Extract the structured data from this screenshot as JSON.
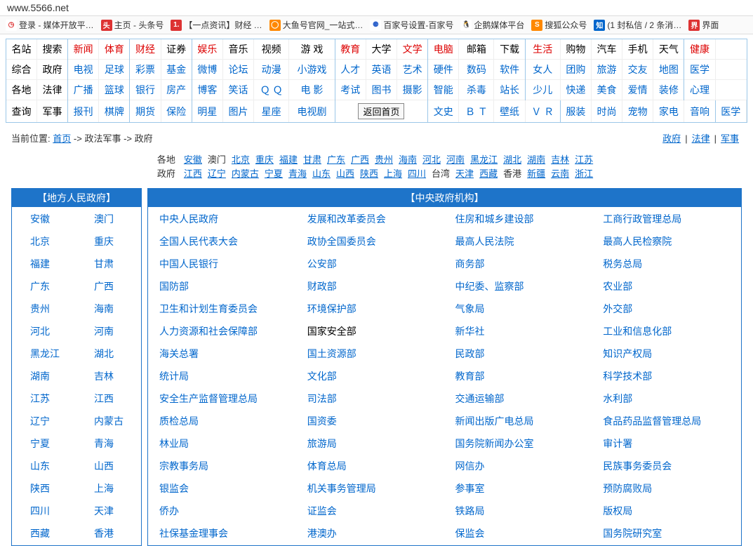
{
  "addressbar": {
    "url": "www.5566.net"
  },
  "bookmarks": [
    {
      "icon_bg": "#fff",
      "icon_fg": "#d33",
      "glyph": "◷",
      "label": "登录 - 媒体开放平…"
    },
    {
      "icon_bg": "#d33",
      "icon_fg": "#fff",
      "glyph": "头",
      "label": "主页 - 头条号"
    },
    {
      "icon_bg": "#d33",
      "icon_fg": "#fff",
      "glyph": "1.",
      "label": "【一点资讯】财经 …"
    },
    {
      "icon_bg": "#f80",
      "icon_fg": "#fff",
      "glyph": "◯",
      "label": "大鱼号官网_一站式…"
    },
    {
      "icon_bg": "#fff",
      "icon_fg": "#36c",
      "glyph": "⚈",
      "label": "百家号设置-百家号"
    },
    {
      "icon_bg": "#fff",
      "icon_fg": "#f90",
      "glyph": "🐧",
      "label": "企鹅媒体平台"
    },
    {
      "icon_bg": "#f80",
      "icon_fg": "#fff",
      "glyph": "S",
      "label": "搜狐公众号"
    },
    {
      "icon_bg": "#06c",
      "icon_fg": "#fff",
      "glyph": "知",
      "label": "(1 封私信 / 2 条消…"
    },
    {
      "icon_bg": "#d33",
      "icon_fg": "#fff",
      "glyph": "界",
      "label": "界面"
    }
  ],
  "nav": [
    [
      {
        "t": "名站",
        "c": "blk"
      },
      {
        "t": "搜索",
        "c": "blk",
        "sep": 1
      },
      {
        "t": "新闻",
        "c": "red"
      },
      {
        "t": "体育",
        "c": "red",
        "sep": 1
      },
      {
        "t": "财经",
        "c": "red"
      },
      {
        "t": "证券",
        "c": "blk",
        "sep": 1
      },
      {
        "t": "娱乐",
        "c": "red"
      },
      {
        "t": "音乐",
        "c": "blk"
      },
      {
        "t": "视频",
        "c": "blk"
      },
      {
        "t": "游 戏",
        "c": "blk",
        "sep": 1
      },
      {
        "t": "教育",
        "c": "red"
      },
      {
        "t": "大学",
        "c": "blk"
      },
      {
        "t": "文学",
        "c": "red",
        "sep": 1
      },
      {
        "t": "电脑",
        "c": "red"
      },
      {
        "t": "邮箱",
        "c": "blk"
      },
      {
        "t": "下载",
        "c": "blk",
        "sep": 1
      },
      {
        "t": "生活",
        "c": "red"
      },
      {
        "t": "购物",
        "c": "blk"
      },
      {
        "t": "汽车",
        "c": "blk"
      },
      {
        "t": "手机",
        "c": "blk"
      },
      {
        "t": "天气",
        "c": "blk",
        "sep": 1
      },
      {
        "t": "健康",
        "c": "red"
      }
    ],
    [
      {
        "t": "综合",
        "c": "blk"
      },
      {
        "t": "政府",
        "c": "blk",
        "sep": 1
      },
      {
        "t": "电视",
        "c": "blu"
      },
      {
        "t": "足球",
        "c": "blu",
        "sep": 1
      },
      {
        "t": "彩票",
        "c": "blu"
      },
      {
        "t": "基金",
        "c": "blu",
        "sep": 1
      },
      {
        "t": "微博",
        "c": "blu"
      },
      {
        "t": "论坛",
        "c": "blu"
      },
      {
        "t": "动漫",
        "c": "blu"
      },
      {
        "t": "小游戏",
        "c": "blu",
        "sep": 1
      },
      {
        "t": "人才",
        "c": "blu"
      },
      {
        "t": "英语",
        "c": "blu"
      },
      {
        "t": "艺术",
        "c": "blu",
        "sep": 1
      },
      {
        "t": "硬件",
        "c": "blu"
      },
      {
        "t": "数码",
        "c": "blu"
      },
      {
        "t": "软件",
        "c": "blu",
        "sep": 1
      },
      {
        "t": "女人",
        "c": "blu"
      },
      {
        "t": "团购",
        "c": "blu"
      },
      {
        "t": "旅游",
        "c": "blu"
      },
      {
        "t": "交友",
        "c": "blu"
      },
      {
        "t": "地图",
        "c": "blu",
        "sep": 1
      },
      {
        "t": "医学",
        "c": "blu"
      }
    ],
    [
      {
        "t": "各地",
        "c": "blk"
      },
      {
        "t": "法律",
        "c": "blk",
        "sep": 1
      },
      {
        "t": "广播",
        "c": "blu"
      },
      {
        "t": "篮球",
        "c": "blu",
        "sep": 1
      },
      {
        "t": "银行",
        "c": "blu"
      },
      {
        "t": "房产",
        "c": "blu",
        "sep": 1
      },
      {
        "t": "博客",
        "c": "blu"
      },
      {
        "t": "笑话",
        "c": "blu"
      },
      {
        "t": "Ｑ Ｑ",
        "c": "blu"
      },
      {
        "t": "电 影",
        "c": "blu",
        "sep": 1
      },
      {
        "t": "考试",
        "c": "blu"
      },
      {
        "t": "图书",
        "c": "blu"
      },
      {
        "t": "摄影",
        "c": "blu",
        "sep": 1
      },
      {
        "t": "智能",
        "c": "blu"
      },
      {
        "t": "杀毒",
        "c": "blu"
      },
      {
        "t": "站长",
        "c": "blu",
        "sep": 1
      },
      {
        "t": "少儿",
        "c": "blu"
      },
      {
        "t": "快递",
        "c": "blu"
      },
      {
        "t": "美食",
        "c": "blu"
      },
      {
        "t": "爱情",
        "c": "blu"
      },
      {
        "t": "装修",
        "c": "blu",
        "sep": 1
      },
      {
        "t": "心理",
        "c": "blu"
      }
    ],
    [
      {
        "t": "查询",
        "c": "blk"
      },
      {
        "t": "军事",
        "c": "blk",
        "sep": 1
      },
      {
        "t": "报刊",
        "c": "blu"
      },
      {
        "t": "棋牌",
        "c": "blu",
        "sep": 1
      },
      {
        "t": "期货",
        "c": "blu"
      },
      {
        "t": "保险",
        "c": "blu",
        "sep": 1
      },
      {
        "t": "明星",
        "c": "blu"
      },
      {
        "t": "图片",
        "c": "blu"
      },
      {
        "t": "星座",
        "c": "blu"
      },
      {
        "t": "电视剧",
        "c": "blu",
        "sep": 1
      },
      {
        "t": "返回首页",
        "c": "btn",
        "span": 3,
        "sep": 1
      },
      {
        "t": "文史",
        "c": "blu"
      },
      {
        "t": "Ｂ Ｔ",
        "c": "blu"
      },
      {
        "t": "壁纸",
        "c": "blu"
      },
      {
        "t": "Ｖ Ｒ",
        "c": "blu",
        "sep": 1
      },
      {
        "t": "服装",
        "c": "blu"
      },
      {
        "t": "时尚",
        "c": "blu"
      },
      {
        "t": "宠物",
        "c": "blu"
      },
      {
        "t": "家电",
        "c": "blu"
      },
      {
        "t": "音响",
        "c": "blu",
        "sep": 1
      },
      {
        "t": "医学",
        "c": "blu"
      }
    ]
  ],
  "breadcrumb": {
    "prefix": "当前位置:",
    "home": "首页",
    "arrow": "->",
    "mid": "政法军事",
    "end": "政府",
    "right": [
      "政府",
      "法律",
      "军事"
    ]
  },
  "provLabel": {
    "l1": "各地",
    "l2": "政府"
  },
  "provRow1": [
    {
      "t": "安徽"
    },
    {
      "t": "澳门",
      "plain": 1
    },
    {
      "t": "北京"
    },
    {
      "t": "重庆"
    },
    {
      "t": "福建"
    },
    {
      "t": "甘肃"
    },
    {
      "t": "广东"
    },
    {
      "t": "广西"
    },
    {
      "t": "贵州"
    },
    {
      "t": "海南"
    },
    {
      "t": "河北"
    },
    {
      "t": "河南"
    },
    {
      "t": "黑龙江"
    },
    {
      "t": "湖北"
    },
    {
      "t": "湖南"
    },
    {
      "t": "吉林"
    },
    {
      "t": "江苏"
    }
  ],
  "provRow2": [
    {
      "t": "江西"
    },
    {
      "t": "辽宁"
    },
    {
      "t": "内蒙古"
    },
    {
      "t": "宁夏"
    },
    {
      "t": "青海"
    },
    {
      "t": "山东"
    },
    {
      "t": "山西"
    },
    {
      "t": "陕西"
    },
    {
      "t": "上海"
    },
    {
      "t": "四川"
    },
    {
      "t": "台湾",
      "plain": 1
    },
    {
      "t": "天津"
    },
    {
      "t": "西藏"
    },
    {
      "t": "香港",
      "plain": 1
    },
    {
      "t": "新疆"
    },
    {
      "t": "云南"
    },
    {
      "t": "浙江"
    }
  ],
  "leftHeader": "【地方人民政府】",
  "leftRows": [
    [
      "安徽",
      "澳门"
    ],
    [
      "北京",
      "重庆"
    ],
    [
      "福建",
      "甘肃"
    ],
    [
      "广东",
      "广西"
    ],
    [
      "贵州",
      "海南"
    ],
    [
      "河北",
      "河南"
    ],
    [
      "黑龙江",
      "湖北"
    ],
    [
      "湖南",
      "吉林"
    ],
    [
      "江苏",
      "江西"
    ],
    [
      "辽宁",
      "内蒙古"
    ],
    [
      "宁夏",
      "青海"
    ],
    [
      "山东",
      "山西"
    ],
    [
      "陕西",
      "上海"
    ],
    [
      "四川",
      "天津"
    ],
    [
      "西藏",
      "香港"
    ]
  ],
  "rightHeader": "【中央政府机构】",
  "rightRows": [
    [
      {
        "t": "中央人民政府"
      },
      {
        "t": "发展和改革委员会"
      },
      {
        "t": "住房和城乡建设部"
      },
      {
        "t": "工商行政管理总局"
      }
    ],
    [
      {
        "t": "全国人民代表大会"
      },
      {
        "t": "政协全国委员会"
      },
      {
        "t": "最高人民法院"
      },
      {
        "t": "最高人民检察院"
      }
    ],
    [
      {
        "t": "中国人民银行"
      },
      {
        "t": "公安部"
      },
      {
        "t": "商务部"
      },
      {
        "t": "税务总局"
      }
    ],
    [
      {
        "t": "国防部"
      },
      {
        "t": "财政部"
      },
      {
        "t": "中纪委、监察部"
      },
      {
        "t": "农业部"
      }
    ],
    [
      {
        "t": "卫生和计划生育委员会"
      },
      {
        "t": "环境保护部"
      },
      {
        "t": "气象局"
      },
      {
        "t": "外交部"
      }
    ],
    [
      {
        "t": "人力资源和社会保障部"
      },
      {
        "t": "国家安全部",
        "blk": 1
      },
      {
        "t": "新华社"
      },
      {
        "t": "工业和信息化部"
      }
    ],
    [
      {
        "t": "海关总署"
      },
      {
        "t": "国土资源部"
      },
      {
        "t": "民政部"
      },
      {
        "t": "知识产权局"
      }
    ],
    [
      {
        "t": "统计局"
      },
      {
        "t": "文化部"
      },
      {
        "t": "教育部"
      },
      {
        "t": "科学技术部"
      }
    ],
    [
      {
        "t": "安全生产监督管理总局"
      },
      {
        "t": "司法部"
      },
      {
        "t": "交通运输部"
      },
      {
        "t": "水利部"
      }
    ],
    [
      {
        "t": "质检总局"
      },
      {
        "t": "国资委"
      },
      {
        "t": "新闻出版广电总局"
      },
      {
        "t": "食品药品监督管理总局"
      }
    ],
    [
      {
        "t": "林业局"
      },
      {
        "t": "旅游局"
      },
      {
        "t": "国务院新闻办公室"
      },
      {
        "t": "审计署"
      }
    ],
    [
      {
        "t": "宗教事务局"
      },
      {
        "t": "体育总局"
      },
      {
        "t": "网信办"
      },
      {
        "t": "民族事务委员会"
      }
    ],
    [
      {
        "t": "银监会"
      },
      {
        "t": "机关事务管理局"
      },
      {
        "t": "参事室"
      },
      {
        "t": "预防腐败局"
      }
    ],
    [
      {
        "t": "侨办"
      },
      {
        "t": "证监会"
      },
      {
        "t": "铁路局"
      },
      {
        "t": "版权局"
      }
    ],
    [
      {
        "t": "社保基金理事会"
      },
      {
        "t": "港澳办"
      },
      {
        "t": "保监会"
      },
      {
        "t": "国务院研究室"
      }
    ]
  ]
}
